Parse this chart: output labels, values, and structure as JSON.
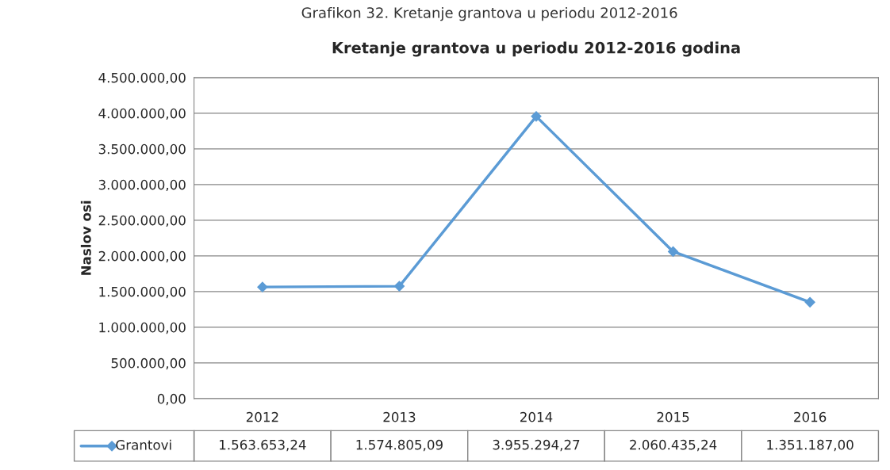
{
  "chart_data": {
    "type": "line",
    "title": "Kretanje grantova u periodu 2012-2016 godina",
    "ylabel": "Naslov osi",
    "annotations": [
      "Grafikon 32. Kretanje grantova u periodu 2012-2016"
    ],
    "categories": [
      "2012",
      "2013",
      "2014",
      "2015",
      "2016"
    ],
    "series": [
      {
        "name": "Grantovi",
        "color": "#5b9bd5",
        "values": [
          1563653.24,
          1574805.09,
          3955294.27,
          2060435.24,
          1351187.0
        ],
        "value_labels": [
          "1.563.653,24",
          "1.574.805,09",
          "3.955.294,27",
          "2.060.435,24",
          "1.351.187,00"
        ]
      }
    ],
    "ylim": [
      0,
      4500000
    ],
    "yticks": [
      {
        "value": 0,
        "label": "0,00"
      },
      {
        "value": 500000,
        "label": "500.000,00"
      },
      {
        "value": 1000000,
        "label": "1.000.000,00"
      },
      {
        "value": 1500000,
        "label": "1.500.000,00"
      },
      {
        "value": 2000000,
        "label": "2.000.000,00"
      },
      {
        "value": 2500000,
        "label": "2.500.000,00"
      },
      {
        "value": 3000000,
        "label": "3.000.000,00"
      },
      {
        "value": 3500000,
        "label": "3.500.000,00"
      },
      {
        "value": 4000000,
        "label": "4.000.000,00"
      },
      {
        "value": 4500000,
        "label": "4.500.000,00"
      }
    ],
    "grid": "y",
    "marker": "diamond",
    "line_style": "solid",
    "legend": "bottom"
  }
}
